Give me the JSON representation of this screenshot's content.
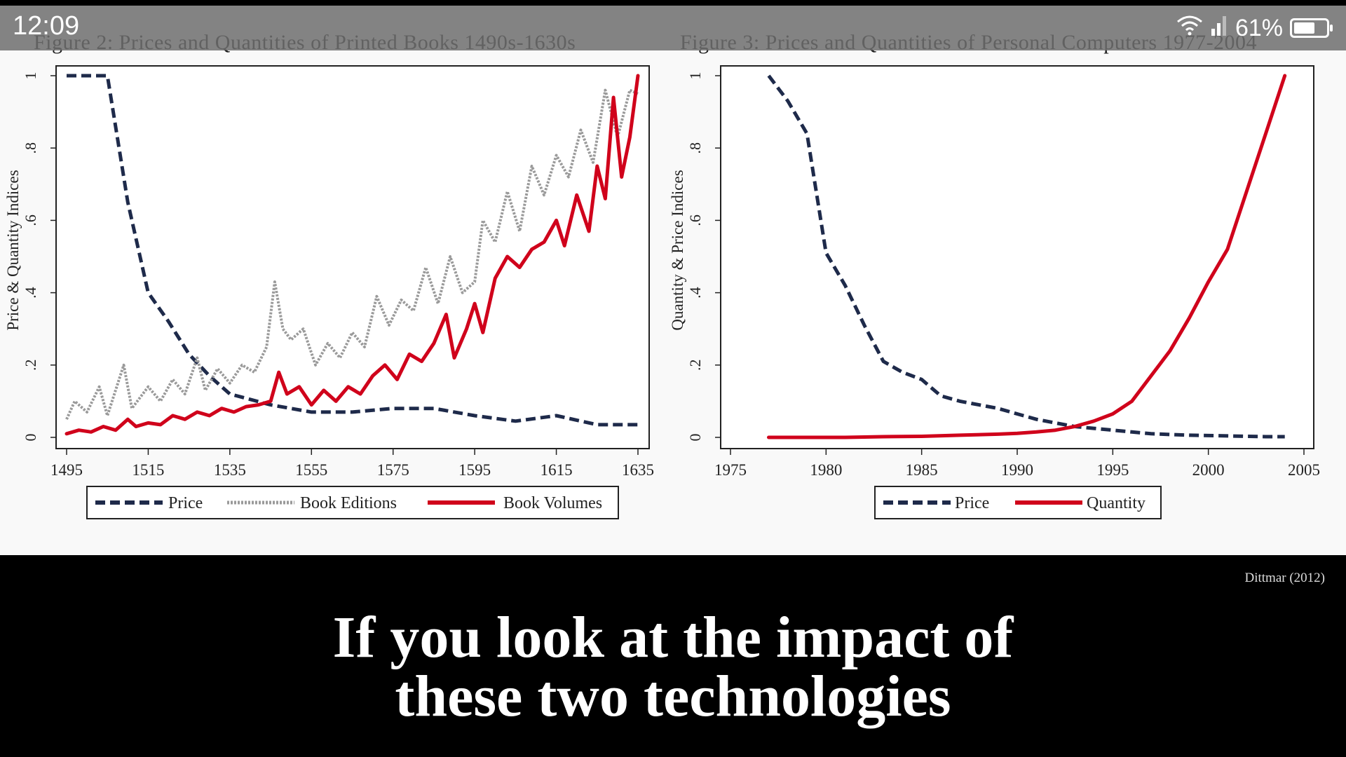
{
  "status": {
    "time": "12:09",
    "battery": "61%"
  },
  "caption": {
    "line1": "If you look at the impact of",
    "line2": "these two technologies"
  },
  "credit": "Dittmar (2012)",
  "colors": {
    "price": "#1e2a4a",
    "editions": "#9a9a9a",
    "volumes": "#d0021b",
    "quantity": "#d0021b"
  },
  "chart_data": [
    {
      "type": "line",
      "title": "Figure 2: Prices and Quantities of Printed Books 1490s-1630s",
      "xlabel": "",
      "ylabel": "Price & Quantity Indices",
      "xlim": [
        1495,
        1635
      ],
      "ylim": [
        0,
        1
      ],
      "xticks": [
        "1495",
        "1515",
        "1535",
        "1555",
        "1575",
        "1595",
        "1615",
        "1635"
      ],
      "yticks": [
        "0",
        ".2",
        ".4",
        ".6",
        ".8",
        "1"
      ],
      "legend_position": "bottom",
      "series": [
        {
          "name": "Price",
          "style": "dashed",
          "color": "#1e2a4a",
          "x": [
            1495,
            1505,
            1510,
            1515,
            1520,
            1525,
            1530,
            1535,
            1545,
            1555,
            1565,
            1575,
            1585,
            1595,
            1605,
            1615,
            1625,
            1635
          ],
          "y": [
            1.0,
            1.0,
            0.65,
            0.4,
            0.32,
            0.23,
            0.17,
            0.12,
            0.09,
            0.07,
            0.07,
            0.08,
            0.08,
            0.06,
            0.045,
            0.06,
            0.035,
            0.035
          ]
        },
        {
          "name": "Book Editions",
          "style": "dotted",
          "color": "#9a9a9a",
          "x": [
            1495,
            1497,
            1500,
            1503,
            1505,
            1509,
            1511,
            1515,
            1518,
            1521,
            1524,
            1527,
            1529,
            1532,
            1535,
            1538,
            1541,
            1544,
            1546,
            1548,
            1550,
            1553,
            1556,
            1559,
            1562,
            1565,
            1568,
            1571,
            1574,
            1577,
            1580,
            1583,
            1586,
            1589,
            1592,
            1595,
            1597,
            1600,
            1603,
            1606,
            1609,
            1612,
            1615,
            1618,
            1621,
            1624,
            1627,
            1630,
            1633,
            1635
          ],
          "y": [
            0.05,
            0.1,
            0.07,
            0.14,
            0.06,
            0.2,
            0.08,
            0.14,
            0.1,
            0.16,
            0.12,
            0.22,
            0.13,
            0.19,
            0.15,
            0.2,
            0.18,
            0.25,
            0.43,
            0.3,
            0.27,
            0.3,
            0.2,
            0.26,
            0.22,
            0.29,
            0.25,
            0.39,
            0.31,
            0.38,
            0.35,
            0.47,
            0.37,
            0.5,
            0.4,
            0.43,
            0.6,
            0.54,
            0.68,
            0.57,
            0.75,
            0.67,
            0.78,
            0.72,
            0.85,
            0.76,
            0.96,
            0.83,
            0.96,
            0.95
          ]
        },
        {
          "name": "Book Volumes",
          "style": "solid",
          "color": "#d0021b",
          "x": [
            1495,
            1498,
            1501,
            1504,
            1507,
            1510,
            1512,
            1515,
            1518,
            1521,
            1524,
            1527,
            1530,
            1533,
            1536,
            1539,
            1542,
            1545,
            1547,
            1549,
            1552,
            1555,
            1558,
            1561,
            1564,
            1567,
            1570,
            1573,
            1576,
            1579,
            1582,
            1585,
            1588,
            1590,
            1593,
            1595,
            1597,
            1600,
            1603,
            1606,
            1609,
            1612,
            1615,
            1617,
            1620,
            1623,
            1625,
            1627,
            1629,
            1631,
            1633,
            1635
          ],
          "y": [
            0.01,
            0.02,
            0.015,
            0.03,
            0.02,
            0.05,
            0.03,
            0.04,
            0.035,
            0.06,
            0.05,
            0.07,
            0.06,
            0.08,
            0.07,
            0.085,
            0.09,
            0.1,
            0.18,
            0.12,
            0.14,
            0.09,
            0.13,
            0.1,
            0.14,
            0.12,
            0.17,
            0.2,
            0.16,
            0.23,
            0.21,
            0.26,
            0.34,
            0.22,
            0.3,
            0.37,
            0.29,
            0.44,
            0.5,
            0.47,
            0.52,
            0.54,
            0.6,
            0.53,
            0.67,
            0.57,
            0.75,
            0.66,
            0.94,
            0.72,
            0.83,
            1.0
          ]
        }
      ]
    },
    {
      "type": "line",
      "title": "Figure 3: Prices and Quantities of Personal Computers 1977-2004",
      "xlabel": "",
      "ylabel": "Quantity & Price Indices",
      "xlim": [
        1975,
        2005
      ],
      "ylim": [
        0,
        1
      ],
      "xticks": [
        "1975",
        "1980",
        "1985",
        "1990",
        "1995",
        "2000",
        "2005"
      ],
      "yticks": [
        "0",
        ".2",
        ".4",
        ".6",
        ".8",
        "1"
      ],
      "legend_position": "bottom",
      "series": [
        {
          "name": "Price",
          "style": "dashed",
          "color": "#1e2a4a",
          "x": [
            1977,
            1978,
            1979,
            1980,
            1981,
            1982,
            1983,
            1984,
            1985,
            1986,
            1987,
            1988,
            1989,
            1990,
            1991,
            1992,
            1993,
            1994,
            1995,
            1996,
            1997,
            1998,
            1999,
            2000,
            2001,
            2002,
            2003,
            2004
          ],
          "y": [
            1.0,
            0.93,
            0.84,
            0.51,
            0.42,
            0.31,
            0.21,
            0.18,
            0.16,
            0.115,
            0.1,
            0.09,
            0.08,
            0.065,
            0.05,
            0.04,
            0.03,
            0.025,
            0.02,
            0.015,
            0.01,
            0.008,
            0.006,
            0.005,
            0.004,
            0.003,
            0.002,
            0.002
          ]
        },
        {
          "name": "Quantity",
          "style": "solid",
          "color": "#d0021b",
          "x": [
            1977,
            1979,
            1981,
            1983,
            1985,
            1987,
            1989,
            1990,
            1991,
            1992,
            1993,
            1994,
            1995,
            1996,
            1997,
            1998,
            1999,
            2000,
            2001,
            2002,
            2003,
            2004
          ],
          "y": [
            0.0,
            0.0,
            0.0,
            0.002,
            0.003,
            0.006,
            0.009,
            0.011,
            0.015,
            0.02,
            0.03,
            0.045,
            0.065,
            0.1,
            0.17,
            0.24,
            0.33,
            0.43,
            0.52,
            0.68,
            0.84,
            1.0
          ]
        }
      ]
    }
  ]
}
